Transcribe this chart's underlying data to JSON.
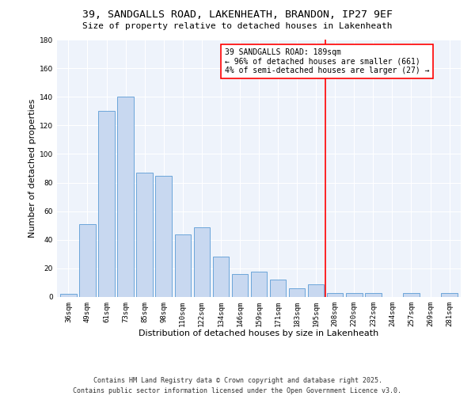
{
  "title": "39, SANDGALLS ROAD, LAKENHEATH, BRANDON, IP27 9EF",
  "subtitle": "Size of property relative to detached houses in Lakenheath",
  "xlabel": "Distribution of detached houses by size in Lakenheath",
  "ylabel": "Number of detached properties",
  "categories": [
    "36sqm",
    "49sqm",
    "61sqm",
    "73sqm",
    "85sqm",
    "98sqm",
    "110sqm",
    "122sqm",
    "134sqm",
    "146sqm",
    "159sqm",
    "171sqm",
    "183sqm",
    "195sqm",
    "208sqm",
    "220sqm",
    "232sqm",
    "244sqm",
    "257sqm",
    "269sqm",
    "281sqm"
  ],
  "values": [
    2,
    51,
    130,
    140,
    87,
    85,
    44,
    49,
    28,
    16,
    18,
    12,
    6,
    9,
    3,
    3,
    3,
    0,
    3,
    0,
    3
  ],
  "bar_color": "#c8d8f0",
  "bar_edge_color": "#5b9bd5",
  "red_line_x": 13.5,
  "annotation_line1": "39 SANDGALLS ROAD: 189sqm",
  "annotation_line2": "← 96% of detached houses are smaller (661)",
  "annotation_line3": "4% of semi-detached houses are larger (27) →",
  "annotation_box_color": "white",
  "annotation_border_color": "red",
  "ylim": [
    0,
    180
  ],
  "yticks": [
    0,
    20,
    40,
    60,
    80,
    100,
    120,
    140,
    160,
    180
  ],
  "background_color": "#eef3fb",
  "grid_color": "#ffffff",
  "footer_line1": "Contains HM Land Registry data © Crown copyright and database right 2025.",
  "footer_line2": "Contains public sector information licensed under the Open Government Licence v3.0.",
  "title_fontsize": 9.5,
  "subtitle_fontsize": 8,
  "axis_label_fontsize": 8,
  "tick_fontsize": 6.5,
  "annotation_fontsize": 7,
  "footer_fontsize": 6
}
